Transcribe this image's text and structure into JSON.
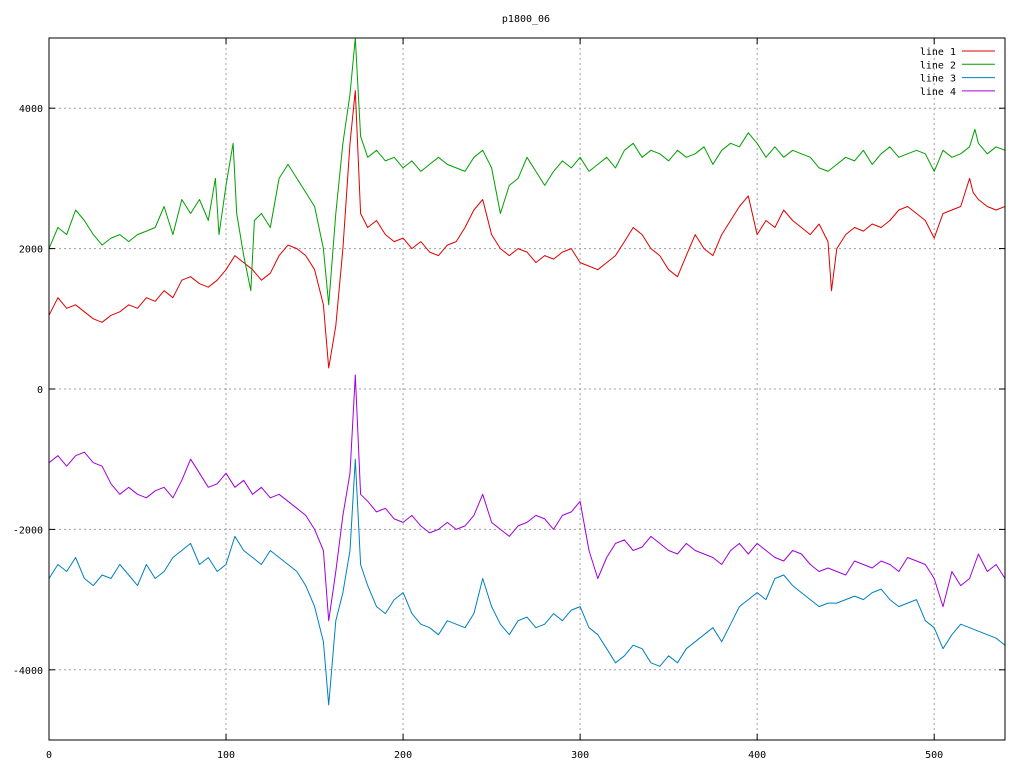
{
  "chart_data": {
    "type": "line",
    "title": "p1800_06",
    "xlabel": "",
    "ylabel": "",
    "xlim": [
      0,
      540
    ],
    "ylim": [
      -5000,
      5000
    ],
    "xticks": [
      0,
      100,
      200,
      300,
      400,
      500
    ],
    "yticks": [
      -4000,
      -2000,
      0,
      2000,
      4000
    ],
    "xtick_labels": [
      "0",
      "100",
      "200",
      "300",
      "400",
      "500"
    ],
    "ytick_labels": [
      "-4000",
      "-2000",
      "0",
      "2000",
      "4000"
    ],
    "grid": true,
    "legend_position": "top-right",
    "series": [
      {
        "name": "line 1",
        "color": "#e00000",
        "x": [
          0,
          5,
          10,
          15,
          20,
          25,
          30,
          35,
          40,
          45,
          50,
          55,
          60,
          65,
          70,
          75,
          80,
          85,
          90,
          95,
          100,
          105,
          110,
          115,
          120,
          125,
          130,
          135,
          140,
          145,
          150,
          155,
          158,
          162,
          166,
          170,
          173,
          176,
          180,
          185,
          190,
          195,
          200,
          205,
          210,
          215,
          220,
          225,
          230,
          235,
          240,
          245,
          250,
          255,
          260,
          265,
          270,
          275,
          280,
          285,
          290,
          295,
          300,
          305,
          310,
          315,
          320,
          325,
          330,
          335,
          340,
          345,
          350,
          355,
          360,
          365,
          370,
          375,
          380,
          385,
          390,
          395,
          400,
          405,
          410,
          415,
          420,
          425,
          430,
          435,
          440,
          442,
          445,
          450,
          455,
          460,
          465,
          470,
          475,
          480,
          485,
          490,
          495,
          500,
          505,
          510,
          515,
          520,
          522,
          525,
          530,
          535,
          540
        ],
        "y": [
          1050,
          1300,
          1150,
          1200,
          1100,
          1000,
          950,
          1050,
          1100,
          1200,
          1150,
          1300,
          1250,
          1400,
          1300,
          1550,
          1600,
          1500,
          1450,
          1550,
          1700,
          1900,
          1800,
          1700,
          1550,
          1650,
          1900,
          2050,
          2000,
          1900,
          1700,
          1200,
          300,
          900,
          2000,
          3500,
          4250,
          2500,
          2300,
          2400,
          2200,
          2100,
          2150,
          2000,
          2100,
          1950,
          1900,
          2050,
          2100,
          2300,
          2550,
          2700,
          2200,
          2000,
          1900,
          2000,
          1950,
          1800,
          1900,
          1850,
          1950,
          2000,
          1800,
          1750,
          1700,
          1800,
          1900,
          2100,
          2300,
          2200,
          2000,
          1900,
          1700,
          1600,
          1900,
          2200,
          2000,
          1900,
          2200,
          2400,
          2600,
          2750,
          2200,
          2400,
          2300,
          2550,
          2400,
          2300,
          2200,
          2350,
          2100,
          1400,
          2000,
          2200,
          2300,
          2250,
          2350,
          2300,
          2400,
          2550,
          2600,
          2500,
          2400,
          2150,
          2500,
          2550,
          2600,
          3000,
          2800,
          2700,
          2600,
          2550,
          2600
        ]
      },
      {
        "name": "line 2",
        "color": "#00a000",
        "x": [
          0,
          5,
          10,
          15,
          20,
          25,
          30,
          35,
          40,
          45,
          50,
          55,
          60,
          65,
          70,
          75,
          80,
          85,
          90,
          94,
          96,
          100,
          104,
          106,
          110,
          114,
          116,
          120,
          125,
          130,
          135,
          140,
          145,
          150,
          155,
          158,
          162,
          166,
          170,
          173,
          176,
          180,
          185,
          190,
          195,
          200,
          205,
          210,
          215,
          220,
          225,
          230,
          235,
          240,
          245,
          250,
          255,
          260,
          265,
          270,
          275,
          280,
          285,
          290,
          295,
          300,
          305,
          310,
          315,
          320,
          325,
          330,
          335,
          340,
          345,
          350,
          355,
          360,
          365,
          370,
          375,
          380,
          385,
          390,
          395,
          400,
          405,
          410,
          415,
          420,
          425,
          430,
          435,
          440,
          445,
          450,
          455,
          460,
          465,
          470,
          475,
          480,
          485,
          490,
          495,
          500,
          505,
          510,
          515,
          520,
          523,
          525,
          530,
          535,
          540
        ],
        "y": [
          2000,
          2300,
          2200,
          2550,
          2400,
          2200,
          2050,
          2150,
          2200,
          2100,
          2200,
          2250,
          2300,
          2600,
          2200,
          2700,
          2500,
          2700,
          2400,
          3000,
          2200,
          2900,
          3500,
          2500,
          1900,
          1400,
          2400,
          2500,
          2300,
          3000,
          3200,
          3000,
          2800,
          2600,
          2000,
          1200,
          2500,
          3500,
          4200,
          5000,
          3600,
          3300,
          3400,
          3250,
          3300,
          3150,
          3250,
          3100,
          3200,
          3300,
          3200,
          3150,
          3100,
          3300,
          3400,
          3150,
          2500,
          2900,
          3000,
          3300,
          3100,
          2900,
          3100,
          3250,
          3150,
          3300,
          3100,
          3200,
          3300,
          3150,
          3400,
          3500,
          3300,
          3400,
          3350,
          3250,
          3400,
          3300,
          3350,
          3450,
          3200,
          3400,
          3500,
          3450,
          3650,
          3500,
          3300,
          3450,
          3300,
          3400,
          3350,
          3300,
          3150,
          3100,
          3200,
          3300,
          3250,
          3400,
          3200,
          3350,
          3450,
          3300,
          3350,
          3400,
          3350,
          3100,
          3400,
          3300,
          3350,
          3450,
          3700,
          3500,
          3350,
          3450,
          3400
        ]
      },
      {
        "name": "line 3",
        "color": "#0080c0",
        "x": [
          0,
          5,
          10,
          15,
          20,
          25,
          30,
          35,
          40,
          45,
          50,
          55,
          60,
          65,
          70,
          75,
          80,
          85,
          90,
          95,
          100,
          105,
          110,
          115,
          120,
          125,
          130,
          135,
          140,
          145,
          150,
          155,
          158,
          162,
          166,
          170,
          173,
          176,
          180,
          185,
          190,
          195,
          200,
          205,
          210,
          215,
          220,
          225,
          230,
          235,
          240,
          245,
          250,
          255,
          260,
          265,
          270,
          275,
          280,
          285,
          290,
          295,
          300,
          305,
          310,
          315,
          320,
          325,
          330,
          335,
          340,
          345,
          350,
          355,
          360,
          365,
          370,
          375,
          380,
          385,
          390,
          395,
          400,
          405,
          410,
          415,
          420,
          425,
          430,
          435,
          440,
          445,
          450,
          455,
          460,
          465,
          470,
          475,
          480,
          485,
          490,
          495,
          500,
          505,
          510,
          515,
          520,
          525,
          530,
          535,
          540
        ],
        "y": [
          -2700,
          -2500,
          -2600,
          -2400,
          -2700,
          -2800,
          -2650,
          -2700,
          -2500,
          -2650,
          -2800,
          -2500,
          -2700,
          -2600,
          -2400,
          -2300,
          -2200,
          -2500,
          -2400,
          -2600,
          -2500,
          -2100,
          -2300,
          -2400,
          -2500,
          -2300,
          -2400,
          -2500,
          -2600,
          -2800,
          -3100,
          -3600,
          -4500,
          -3300,
          -2900,
          -2300,
          -1000,
          -2500,
          -2800,
          -3100,
          -3200,
          -3000,
          -2900,
          -3200,
          -3350,
          -3400,
          -3500,
          -3300,
          -3350,
          -3400,
          -3200,
          -2700,
          -3100,
          -3350,
          -3500,
          -3300,
          -3250,
          -3400,
          -3350,
          -3200,
          -3300,
          -3150,
          -3100,
          -3400,
          -3500,
          -3700,
          -3900,
          -3800,
          -3650,
          -3700,
          -3900,
          -3950,
          -3800,
          -3900,
          -3700,
          -3600,
          -3500,
          -3400,
          -3600,
          -3350,
          -3100,
          -3000,
          -2900,
          -3000,
          -2700,
          -2650,
          -2800,
          -2900,
          -3000,
          -3100,
          -3050,
          -3050,
          -3000,
          -2950,
          -3000,
          -2900,
          -2850,
          -3000,
          -3100,
          -3050,
          -3000,
          -3300,
          -3400,
          -3700,
          -3500,
          -3350,
          -3400,
          -3450,
          -3500,
          -3550,
          -3650
        ]
      },
      {
        "name": "line 4",
        "color": "#a000e0",
        "x": [
          0,
          5,
          10,
          15,
          20,
          25,
          30,
          35,
          40,
          45,
          50,
          55,
          60,
          65,
          70,
          75,
          80,
          85,
          90,
          95,
          100,
          105,
          110,
          115,
          120,
          125,
          130,
          135,
          140,
          145,
          150,
          155,
          158,
          162,
          166,
          170,
          173,
          176,
          180,
          185,
          190,
          195,
          200,
          205,
          210,
          215,
          220,
          225,
          230,
          235,
          240,
          245,
          250,
          255,
          260,
          265,
          270,
          275,
          280,
          285,
          290,
          295,
          300,
          305,
          310,
          315,
          320,
          325,
          330,
          335,
          340,
          345,
          350,
          355,
          360,
          365,
          370,
          375,
          380,
          385,
          390,
          395,
          400,
          405,
          410,
          415,
          420,
          425,
          430,
          435,
          440,
          445,
          450,
          455,
          460,
          465,
          470,
          475,
          480,
          485,
          490,
          495,
          500,
          505,
          510,
          515,
          520,
          525,
          530,
          535,
          540
        ],
        "y": [
          -1050,
          -950,
          -1100,
          -950,
          -900,
          -1050,
          -1100,
          -1350,
          -1500,
          -1400,
          -1500,
          -1550,
          -1450,
          -1400,
          -1550,
          -1300,
          -1000,
          -1200,
          -1400,
          -1350,
          -1200,
          -1400,
          -1300,
          -1500,
          -1400,
          -1550,
          -1500,
          -1600,
          -1700,
          -1800,
          -2000,
          -2300,
          -3300,
          -2600,
          -1800,
          -1200,
          200,
          -1500,
          -1600,
          -1750,
          -1700,
          -1850,
          -1900,
          -1800,
          -1950,
          -2050,
          -2000,
          -1900,
          -2000,
          -1950,
          -1800,
          -1500,
          -1900,
          -2000,
          -2100,
          -1950,
          -1900,
          -1800,
          -1850,
          -2000,
          -1800,
          -1750,
          -1600,
          -2300,
          -2700,
          -2400,
          -2200,
          -2150,
          -2300,
          -2250,
          -2100,
          -2200,
          -2300,
          -2350,
          -2200,
          -2300,
          -2350,
          -2400,
          -2500,
          -2300,
          -2200,
          -2350,
          -2200,
          -2300,
          -2400,
          -2450,
          -2300,
          -2350,
          -2500,
          -2600,
          -2550,
          -2600,
          -2650,
          -2450,
          -2500,
          -2550,
          -2450,
          -2500,
          -2600,
          -2400,
          -2450,
          -2500,
          -2700,
          -3100,
          -2600,
          -2800,
          -2700,
          -2350,
          -2600,
          -2500,
          -2700
        ]
      }
    ]
  }
}
